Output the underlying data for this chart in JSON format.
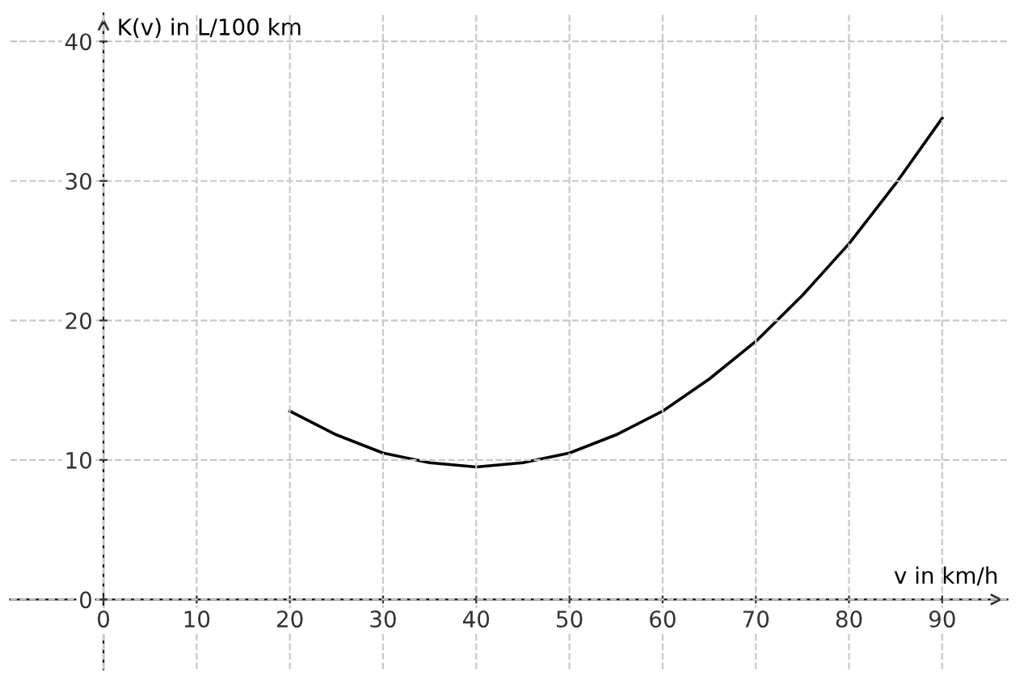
{
  "chart_data": {
    "type": "line",
    "xlabel": "v in km/h",
    "ylabel": "K(v) in L/100 km",
    "x": [
      20,
      25,
      30,
      35,
      40,
      45,
      50,
      55,
      60,
      65,
      70,
      75,
      80,
      85,
      90
    ],
    "series": [
      {
        "color": "#000000",
        "values": [
          13.5,
          11.8,
          10.5,
          9.8,
          9.5,
          9.8,
          10.5,
          11.8,
          13.5,
          15.8,
          18.5,
          21.8,
          25.5,
          29.8,
          34.5
        ]
      }
    ],
    "xlim": [
      -10,
      97
    ],
    "ylim": [
      -5,
      42
    ],
    "xticks": [
      0,
      10,
      20,
      30,
      40,
      50,
      60,
      70,
      80,
      90
    ],
    "yticks": [
      0,
      10,
      20,
      30,
      40
    ],
    "grid": true,
    "marker": "none",
    "line_style": "solid"
  }
}
